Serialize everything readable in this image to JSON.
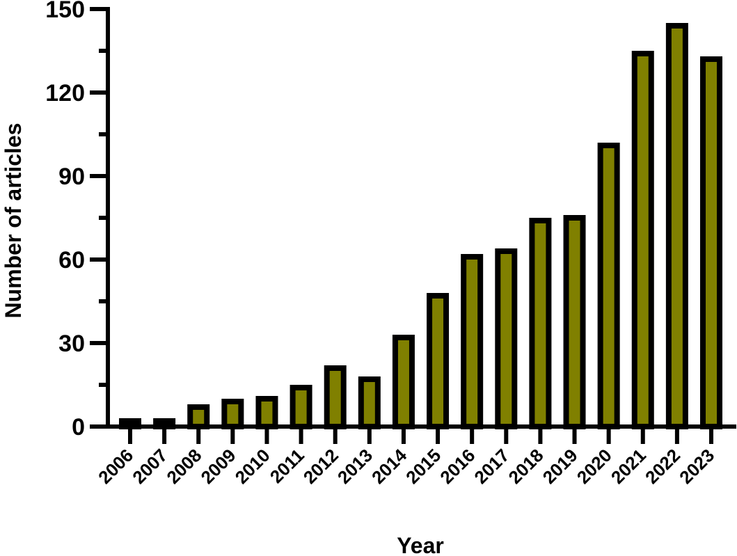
{
  "chart_data": {
    "type": "bar",
    "title": "",
    "xlabel": "Year",
    "ylabel": "Number of articles",
    "categories": [
      "2006",
      "2007",
      "2008",
      "2009",
      "2010",
      "2011",
      "2012",
      "2013",
      "2014",
      "2015",
      "2016",
      "2017",
      "2018",
      "2019",
      "2020",
      "2021",
      "2022",
      "2023"
    ],
    "values": [
      2,
      2,
      7,
      9,
      10,
      14,
      21,
      17,
      32,
      47,
      61,
      63,
      74,
      75,
      101,
      134,
      144,
      132
    ],
    "ylim": [
      0,
      150
    ],
    "yticks": [
      0,
      30,
      60,
      90,
      120,
      150
    ],
    "yticks_minor": [
      15,
      45,
      75,
      105,
      135
    ],
    "grid": false,
    "legend": null,
    "x_tick_rotation": -45,
    "colors": {
      "bar_fill": "#808000",
      "bar_edge": "#000000",
      "axis": "#000000"
    }
  }
}
